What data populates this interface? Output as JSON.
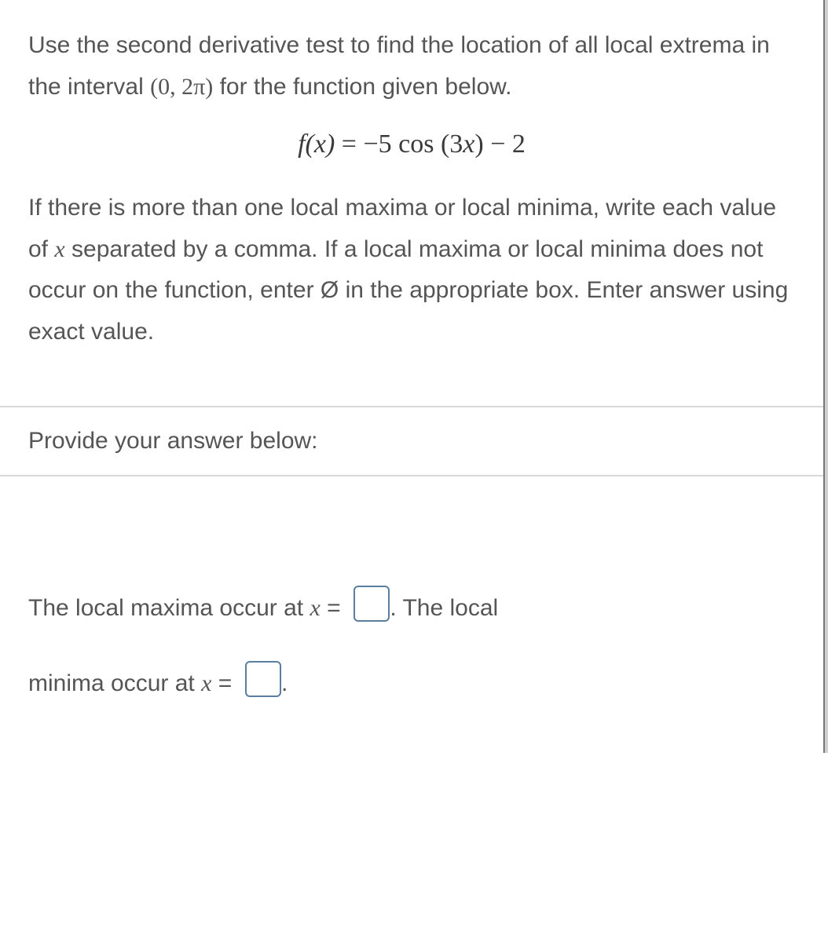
{
  "question": {
    "para1_a": "Use the second derivative test to find the location of all local extrema in the interval ",
    "interval": "(0, 2π)",
    "para1_b": " for the function given below.",
    "equation_lhs": "f(x)",
    "equation_eq": " = ",
    "equation_rhs": "−5 cos (3x) − 2",
    "para2_a": "If there is more than one local maxima or local minima, write each value of ",
    "var_x": "x",
    "para2_b": " separated by a comma. If a local maxima or local minima does not occur on the function, enter ",
    "emptyset": "Ø",
    "para2_c": " in the appropriate box. Enter answer using exact value."
  },
  "prompt": "Provide your answer below:",
  "answer": {
    "line1_a": "The local maxima occur at ",
    "line1_x": "x",
    "line1_eq": " = ",
    "line1_b": ". The local",
    "line2_a": "minima occur at ",
    "line2_x": "x",
    "line2_eq": " = ",
    "line2_b": "."
  },
  "style": {
    "border_color": "#d9d9d9",
    "text_color": "#555555",
    "input_border": "#5a7ea0",
    "font_size_body": 30,
    "font_size_eq": 34
  }
}
